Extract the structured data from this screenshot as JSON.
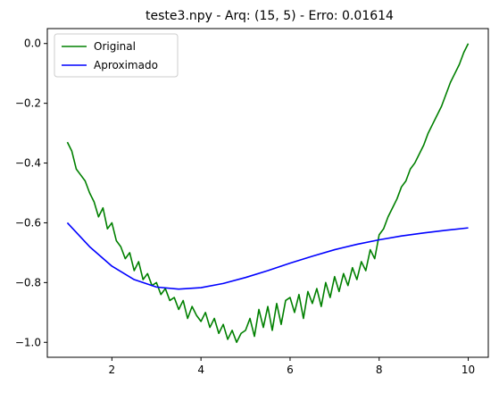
{
  "chart_data": {
    "type": "line",
    "title": "teste3.npy - Arq: (15, 5) - Erro: 0.01614",
    "xlabel": "",
    "ylabel": "",
    "xlim": [
      0.55,
      10.45
    ],
    "ylim": [
      -1.05,
      0.05
    ],
    "xticks": [
      2,
      4,
      6,
      8,
      10
    ],
    "xtick_labels": [
      "2",
      "4",
      "6",
      "8",
      "10"
    ],
    "yticks": [
      -1.0,
      -0.8,
      -0.6,
      -0.4,
      -0.2,
      0.0
    ],
    "ytick_labels": [
      "−1.0",
      "−0.8",
      "−0.6",
      "−0.4",
      "−0.2",
      "0.0"
    ],
    "grid": false,
    "legend_position": "top-left",
    "series": [
      {
        "name": "Original",
        "color": "#008000",
        "x": [
          1.0,
          1.1,
          1.2,
          1.3,
          1.4,
          1.5,
          1.6,
          1.7,
          1.8,
          1.9,
          2.0,
          2.1,
          2.2,
          2.3,
          2.4,
          2.5,
          2.6,
          2.7,
          2.8,
          2.9,
          3.0,
          3.1,
          3.2,
          3.3,
          3.4,
          3.5,
          3.6,
          3.7,
          3.8,
          3.9,
          4.0,
          4.1,
          4.2,
          4.3,
          4.4,
          4.5,
          4.6,
          4.7,
          4.8,
          4.9,
          5.0,
          5.1,
          5.2,
          5.3,
          5.4,
          5.5,
          5.6,
          5.7,
          5.8,
          5.9,
          6.0,
          6.1,
          6.2,
          6.3,
          6.4,
          6.5,
          6.6,
          6.7,
          6.8,
          6.9,
          7.0,
          7.1,
          7.2,
          7.3,
          7.4,
          7.5,
          7.6,
          7.7,
          7.8,
          7.9,
          8.0,
          8.1,
          8.2,
          8.3,
          8.4,
          8.5,
          8.6,
          8.7,
          8.8,
          8.9,
          9.0,
          9.1,
          9.2,
          9.3,
          9.4,
          9.5,
          9.6,
          9.7,
          9.8,
          9.9,
          10.0
        ],
        "y": [
          -0.33,
          -0.36,
          -0.42,
          -0.44,
          -0.46,
          -0.5,
          -0.53,
          -0.58,
          -0.55,
          -0.62,
          -0.6,
          -0.66,
          -0.68,
          -0.72,
          -0.7,
          -0.76,
          -0.73,
          -0.79,
          -0.77,
          -0.81,
          -0.8,
          -0.84,
          -0.82,
          -0.86,
          -0.85,
          -0.89,
          -0.86,
          -0.92,
          -0.88,
          -0.91,
          -0.93,
          -0.9,
          -0.95,
          -0.92,
          -0.97,
          -0.94,
          -0.99,
          -0.96,
          -1.0,
          -0.97,
          -0.96,
          -0.92,
          -0.98,
          -0.89,
          -0.95,
          -0.88,
          -0.96,
          -0.87,
          -0.94,
          -0.86,
          -0.85,
          -0.9,
          -0.84,
          -0.92,
          -0.83,
          -0.87,
          -0.82,
          -0.88,
          -0.8,
          -0.85,
          -0.78,
          -0.83,
          -0.77,
          -0.81,
          -0.75,
          -0.79,
          -0.73,
          -0.76,
          -0.69,
          -0.72,
          -0.64,
          -0.62,
          -0.58,
          -0.55,
          -0.52,
          -0.48,
          -0.46,
          -0.42,
          -0.4,
          -0.37,
          -0.34,
          -0.3,
          -0.27,
          -0.24,
          -0.21,
          -0.17,
          -0.13,
          -0.1,
          -0.07,
          -0.03,
          0.0
        ]
      },
      {
        "name": "Aproximado",
        "color": "#0000ff",
        "x": [
          1.0,
          1.5,
          2.0,
          2.5,
          3.0,
          3.5,
          4.0,
          4.5,
          5.0,
          5.5,
          6.0,
          6.5,
          7.0,
          7.5,
          8.0,
          8.5,
          9.0,
          9.5,
          10.0
        ],
        "y": [
          -0.6,
          -0.68,
          -0.745,
          -0.79,
          -0.815,
          -0.822,
          -0.817,
          -0.803,
          -0.783,
          -0.76,
          -0.735,
          -0.712,
          -0.69,
          -0.672,
          -0.657,
          -0.644,
          -0.634,
          -0.625,
          -0.617
        ]
      }
    ]
  }
}
